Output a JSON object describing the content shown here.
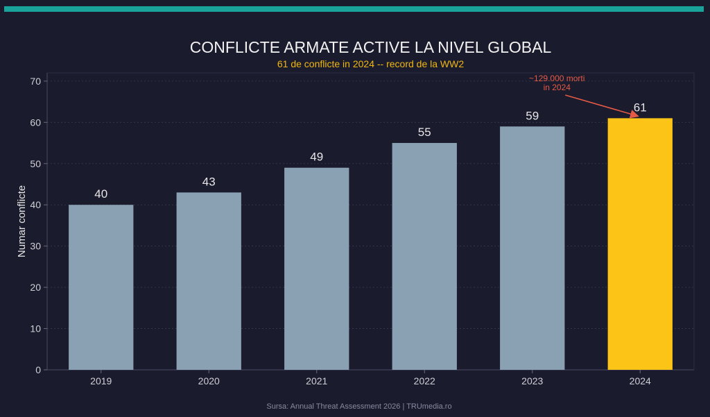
{
  "colors": {
    "accent_bar": "#1aa39a",
    "subtitle": "#f0b80f",
    "bar_default": "#8aa1b4",
    "bar_highlight": "#fcc417",
    "annotation": "#e55a45",
    "text": "#e6e6e6",
    "axis_text": "#cfcfd6"
  },
  "source": "Sursa: Annual Threat Assessment 2026 | TRUmedia.ro",
  "chart_data": {
    "type": "bar",
    "title": "CONFLICTE ARMATE ACTIVE LA NIVEL GLOBAL",
    "subtitle": "61 de conflicte in 2024 -- record de la WW2",
    "xlabel": "",
    "ylabel": "Numar conflicte",
    "categories": [
      "2019",
      "2020",
      "2021",
      "2022",
      "2023",
      "2024"
    ],
    "values": [
      40,
      43,
      49,
      55,
      59,
      61
    ],
    "data_labels": [
      "40",
      "43",
      "49",
      "55",
      "59",
      "61"
    ],
    "highlight_index": 5,
    "ylim": [
      0,
      72
    ],
    "yticks": [
      0,
      10,
      20,
      30,
      40,
      50,
      60,
      70
    ],
    "grid": true,
    "legend": "none",
    "annotation": {
      "lines": [
        "~129.000 morti",
        "in 2024"
      ],
      "target_category": "2024"
    }
  }
}
